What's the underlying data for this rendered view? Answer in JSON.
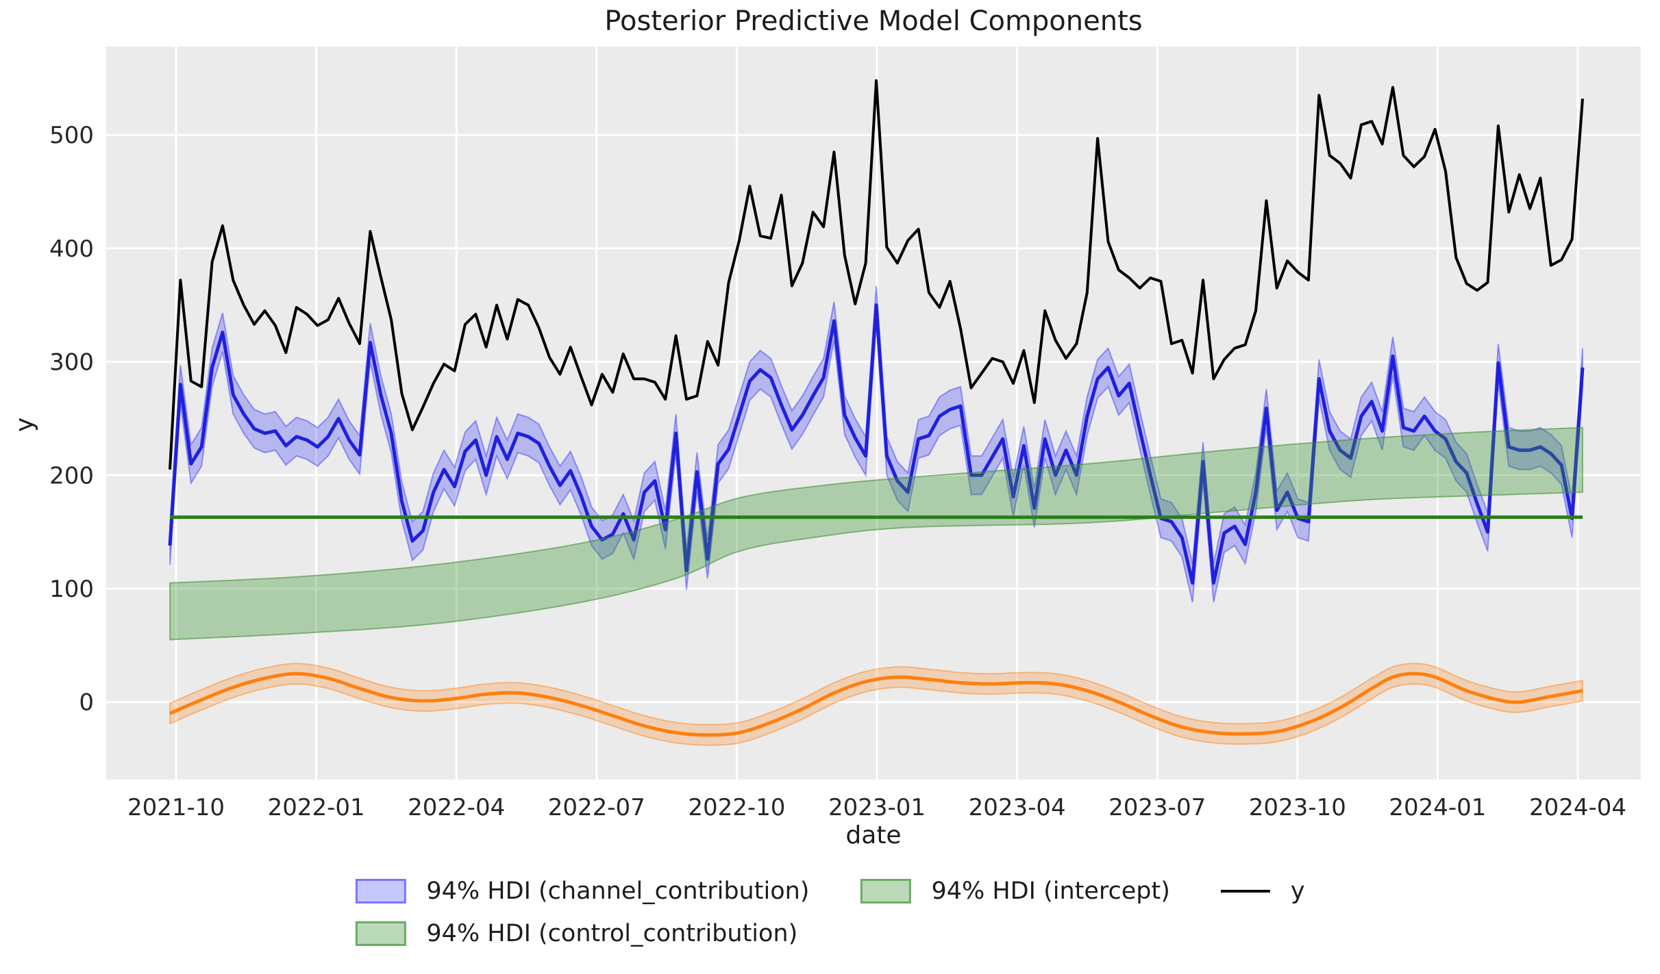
{
  "chart_data": {
    "type": "line",
    "title": "Posterior Predictive Model Components",
    "xlabel": "date",
    "ylabel": "y",
    "background": {
      "figure": "#ffffff",
      "axes": "#ebebeb",
      "grid": "#ffffff"
    },
    "x_axis": {
      "tick_labels": [
        "2021-10",
        "2022-01",
        "2022-04",
        "2022-07",
        "2022-10",
        "2023-01",
        "2023-04",
        "2023-07",
        "2023-10",
        "2024-01",
        "2024-04"
      ],
      "start_date": "2021-09-27",
      "frequency": "weekly",
      "n_points": 135
    },
    "y_axis": {
      "tick_labels": [
        "0",
        "100",
        "200",
        "300",
        "400",
        "500"
      ],
      "ylim": [
        -68,
        578
      ]
    },
    "series": [
      {
        "name": "y",
        "kind": "line",
        "color": "#000000",
        "linewidth": 4,
        "values": [
          205,
          372,
          283,
          278,
          388,
          420,
          372,
          350,
          333,
          345,
          332,
          308,
          348,
          342,
          332,
          337,
          356,
          334,
          316,
          415,
          375,
          337,
          272,
          240,
          260,
          281,
          298,
          292,
          333,
          342,
          313,
          350,
          320,
          355,
          350,
          330,
          304,
          289,
          313,
          287,
          262,
          289,
          273,
          307,
          285,
          285,
          282,
          267,
          323,
          267,
          270,
          318,
          297,
          370,
          407,
          455,
          411,
          409,
          447,
          367,
          387,
          432,
          419,
          485,
          394,
          351,
          387,
          548,
          401,
          387,
          407,
          417,
          361,
          348,
          371,
          329,
          277,
          290,
          303,
          300,
          281,
          310,
          264,
          345,
          319,
          303,
          316,
          361,
          497,
          406,
          381,
          374,
          365,
          374,
          371,
          316,
          319,
          290,
          372,
          285,
          302,
          312,
          315,
          345,
          442,
          365,
          389,
          379,
          372,
          535,
          482,
          475,
          462,
          509,
          512,
          492,
          542,
          482,
          472,
          481,
          505,
          468,
          392,
          369,
          363,
          370,
          508,
          432,
          465,
          435,
          462,
          385,
          390,
          408,
          532
        ]
      },
      {
        "name": "channel_contribution",
        "kind": "line_with_hdi",
        "hdi_label": "94% HDI (channel_contribution)",
        "line_color": "#2020dd",
        "band_fill": "rgba(0,0,255,0.22)",
        "band_edge": "rgba(0,0,255,0.35)",
        "linewidth": 5,
        "hdi_halfwidth": 17,
        "values": [
          138,
          280,
          210,
          225,
          295,
          326,
          271,
          254,
          241,
          237,
          239,
          226,
          234,
          231,
          225,
          234,
          250,
          231,
          218,
          317,
          271,
          237,
          177,
          142,
          151,
          185,
          205,
          190,
          221,
          231,
          200,
          234,
          214,
          237,
          234,
          228,
          208,
          191,
          204,
          182,
          155,
          143,
          148,
          166,
          143,
          185,
          195,
          152,
          237,
          116,
          203,
          126,
          210,
          223,
          253,
          283,
          293,
          286,
          262,
          240,
          253,
          270,
          286,
          336,
          253,
          233,
          217,
          350,
          217,
          195,
          185,
          232,
          235,
          252,
          258,
          261,
          200,
          200,
          216,
          232,
          181,
          226,
          171,
          232,
          200,
          222,
          200,
          252,
          285,
          295,
          270,
          281,
          240,
          200,
          162,
          159,
          145,
          105,
          212,
          105,
          149,
          155,
          139,
          185,
          259,
          169,
          185,
          162,
          159,
          285,
          239,
          222,
          215,
          252,
          265,
          239,
          305,
          242,
          239,
          252,
          239,
          232,
          212,
          202,
          175,
          150,
          299,
          225,
          222,
          222,
          225,
          219,
          209,
          162,
          295
        ]
      },
      {
        "name": "intercept",
        "kind": "hdi_band",
        "hdi_label": "94% HDI (intercept)",
        "band_fill": "rgba(58,148,48,0.35)",
        "band_edge": "rgba(58,140,48,0.55)",
        "knots_low_high": [
          [
            0,
            55,
            105
          ],
          [
            13,
            61,
            111
          ],
          [
            26,
            70,
            122
          ],
          [
            39,
            88,
            140
          ],
          [
            48,
            109,
            161
          ],
          [
            54,
            133,
            180
          ],
          [
            61,
            145,
            190
          ],
          [
            70,
            154,
            198
          ],
          [
            87,
            158,
            210
          ],
          [
            100,
            168,
            222
          ],
          [
            113,
            178,
            232
          ],
          [
            124,
            182,
            238
          ],
          [
            134,
            185,
            242
          ]
        ]
      },
      {
        "name": "intercept_mean",
        "kind": "hline",
        "color": "#2a7e1c",
        "linewidth": 5,
        "value": 163
      },
      {
        "name": "control_contribution",
        "kind": "smooth_line_with_hdi",
        "hdi_label": "94% HDI (control_contribution)",
        "line_color": "#ff7f0e",
        "band_fill": "rgba(255,127,14,0.25)",
        "band_edge": "rgba(255,127,14,0.45)",
        "linewidth": 5,
        "hdi_halfwidth": 9,
        "knots": [
          [
            0,
            -10
          ],
          [
            3,
            2
          ],
          [
            6,
            13
          ],
          [
            9,
            21
          ],
          [
            12,
            25
          ],
          [
            15,
            21
          ],
          [
            18,
            12
          ],
          [
            21,
            4
          ],
          [
            24,
            1
          ],
          [
            27,
            3
          ],
          [
            30,
            7
          ],
          [
            33,
            8
          ],
          [
            36,
            4
          ],
          [
            39,
            -3
          ],
          [
            42,
            -12
          ],
          [
            45,
            -21
          ],
          [
            48,
            -27
          ],
          [
            51,
            -29
          ],
          [
            54,
            -27
          ],
          [
            57,
            -18
          ],
          [
            60,
            -6
          ],
          [
            63,
            8
          ],
          [
            66,
            18
          ],
          [
            69,
            22
          ],
          [
            72,
            20
          ],
          [
            75,
            17
          ],
          [
            78,
            16
          ],
          [
            81,
            17
          ],
          [
            84,
            16
          ],
          [
            87,
            10
          ],
          [
            90,
            0
          ],
          [
            93,
            -12
          ],
          [
            96,
            -22
          ],
          [
            99,
            -27
          ],
          [
            102,
            -28
          ],
          [
            105,
            -26
          ],
          [
            108,
            -18
          ],
          [
            111,
            -5
          ],
          [
            114,
            12
          ],
          [
            116,
            22
          ],
          [
            118,
            25
          ],
          [
            120,
            22
          ],
          [
            123,
            10
          ],
          [
            126,
            2
          ],
          [
            128,
            0
          ],
          [
            131,
            5
          ],
          [
            134,
            10
          ]
        ]
      }
    ],
    "legend": {
      "position": "below-axes",
      "columns": [
        [
          {
            "swatch": "patch",
            "fill": "rgba(0,0,255,0.22)",
            "edge": "rgba(0,0,255,0.4)",
            "label": "94% HDI (channel_contribution)"
          },
          {
            "swatch": "patch",
            "fill": "rgba(58,148,48,0.35)",
            "edge": "rgba(58,140,48,0.6)",
            "label": "94% HDI (control_contribution)"
          }
        ],
        [
          {
            "swatch": "patch",
            "fill": "rgba(58,148,48,0.35)",
            "edge": "rgba(58,140,48,0.6)",
            "label": "94% HDI (intercept)"
          }
        ],
        [
          {
            "swatch": "line",
            "color": "#000000",
            "label": "y"
          }
        ]
      ]
    }
  }
}
